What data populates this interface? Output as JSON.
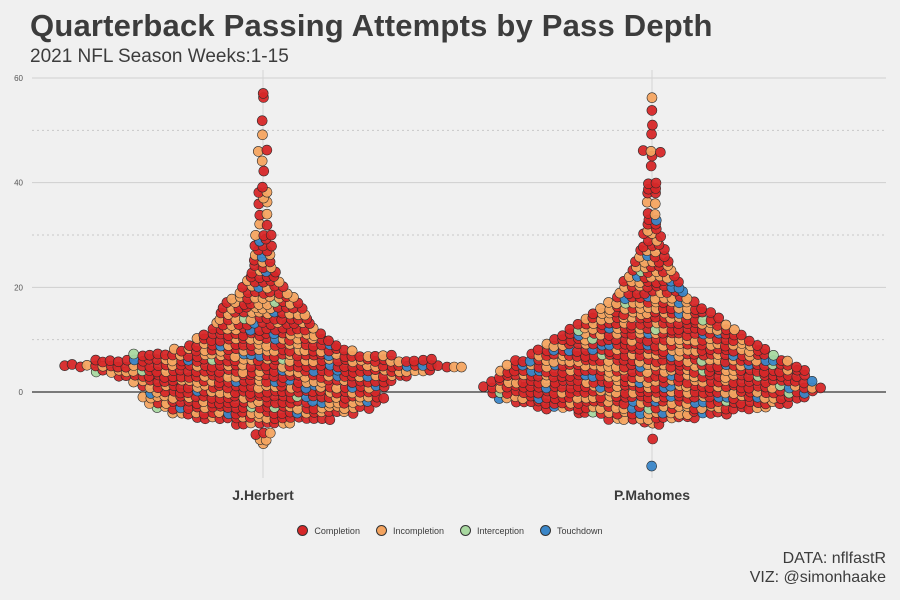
{
  "title": "Quarterback Passing Attempts by Pass Depth",
  "subtitle": "2021 NFL Season Weeks:1-15",
  "caption": {
    "line1": "DATA: nflfastR",
    "line2": "VIZ: @simonhaake"
  },
  "chart_data": {
    "type": "scatter",
    "subtype": "beeswarm",
    "title": "Quarterback Passing Attempts by Pass Depth",
    "subtitle": "2021 NFL Season Weeks:1-15",
    "xlabel": "",
    "ylabel": "",
    "categories": [
      "J.Herbert",
      "P.Mahomes"
    ],
    "ylim": [
      -17,
      60
    ],
    "yticks": [
      0,
      20,
      40,
      60
    ],
    "grid": true,
    "legend_position": "bottom",
    "colors": {
      "Completion": "#d62728",
      "Incompletion": "#f4a460",
      "Interception": "#a8d8a0",
      "Touchdown": "#3a86c8"
    },
    "legend": [
      "Completion",
      "Incompletion",
      "Interception",
      "Touchdown"
    ],
    "series": [
      {
        "name": "J.Herbert",
        "depth_distribution": [
          {
            "d": -10,
            "n": 1
          },
          {
            "d": -9,
            "n": 2
          },
          {
            "d": -8,
            "n": 3
          },
          {
            "d": -6,
            "n": 8
          },
          {
            "d": -5,
            "n": 18
          },
          {
            "d": -4,
            "n": 24
          },
          {
            "d": -3,
            "n": 28
          },
          {
            "d": -2,
            "n": 30
          },
          {
            "d": -1,
            "n": 32
          },
          {
            "d": 0,
            "n": 30
          },
          {
            "d": 1,
            "n": 32
          },
          {
            "d": 2,
            "n": 34
          },
          {
            "d": 3,
            "n": 38
          },
          {
            "d": 4,
            "n": 44
          },
          {
            "d": 5,
            "n": 52
          },
          {
            "d": 6,
            "n": 44
          },
          {
            "d": 7,
            "n": 34
          },
          {
            "d": 8,
            "n": 24
          },
          {
            "d": 9,
            "n": 20
          },
          {
            "d": 10,
            "n": 18
          },
          {
            "d": 11,
            "n": 16
          },
          {
            "d": 12,
            "n": 14
          },
          {
            "d": 13,
            "n": 13
          },
          {
            "d": 14,
            "n": 12
          },
          {
            "d": 15,
            "n": 12
          },
          {
            "d": 16,
            "n": 11
          },
          {
            "d": 17,
            "n": 10
          },
          {
            "d": 18,
            "n": 9
          },
          {
            "d": 19,
            "n": 7
          },
          {
            "d": 20,
            "n": 6
          },
          {
            "d": 21,
            "n": 5
          },
          {
            "d": 22,
            "n": 4
          },
          {
            "d": 23,
            "n": 4
          },
          {
            "d": 24,
            "n": 3
          },
          {
            "d": 25,
            "n": 3
          },
          {
            "d": 26,
            "n": 3
          },
          {
            "d": 27,
            "n": 2
          },
          {
            "d": 28,
            "n": 3
          },
          {
            "d": 29,
            "n": 2
          },
          {
            "d": 30,
            "n": 3
          },
          {
            "d": 32,
            "n": 2
          },
          {
            "d": 34,
            "n": 2
          },
          {
            "d": 36,
            "n": 2
          },
          {
            "d": 37,
            "n": 1
          },
          {
            "d": 38,
            "n": 2
          },
          {
            "d": 39,
            "n": 1
          },
          {
            "d": 42,
            "n": 1
          },
          {
            "d": 44,
            "n": 1
          },
          {
            "d": 46,
            "n": 2
          },
          {
            "d": 49,
            "n": 1
          },
          {
            "d": 52,
            "n": 1
          },
          {
            "d": 56,
            "n": 1
          },
          {
            "d": 57,
            "n": 1
          }
        ]
      },
      {
        "name": "P.Mahomes",
        "depth_distribution": [
          {
            "d": -14,
            "n": 1
          },
          {
            "d": -9,
            "n": 1
          },
          {
            "d": -6,
            "n": 3
          },
          {
            "d": -5,
            "n": 12
          },
          {
            "d": -4,
            "n": 20
          },
          {
            "d": -3,
            "n": 30
          },
          {
            "d": -2,
            "n": 36
          },
          {
            "d": -1,
            "n": 40
          },
          {
            "d": 0,
            "n": 42
          },
          {
            "d": 1,
            "n": 44
          },
          {
            "d": 2,
            "n": 42
          },
          {
            "d": 3,
            "n": 40
          },
          {
            "d": 4,
            "n": 40
          },
          {
            "d": 5,
            "n": 38
          },
          {
            "d": 6,
            "n": 36
          },
          {
            "d": 7,
            "n": 32
          },
          {
            "d": 8,
            "n": 30
          },
          {
            "d": 9,
            "n": 28
          },
          {
            "d": 10,
            "n": 26
          },
          {
            "d": 11,
            "n": 24
          },
          {
            "d": 12,
            "n": 22
          },
          {
            "d": 13,
            "n": 20
          },
          {
            "d": 14,
            "n": 18
          },
          {
            "d": 15,
            "n": 16
          },
          {
            "d": 16,
            "n": 14
          },
          {
            "d": 17,
            "n": 12
          },
          {
            "d": 18,
            "n": 10
          },
          {
            "d": 19,
            "n": 9
          },
          {
            "d": 20,
            "n": 8
          },
          {
            "d": 21,
            "n": 8
          },
          {
            "d": 22,
            "n": 7
          },
          {
            "d": 23,
            "n": 6
          },
          {
            "d": 24,
            "n": 5
          },
          {
            "d": 25,
            "n": 5
          },
          {
            "d": 26,
            "n": 4
          },
          {
            "d": 27,
            "n": 4
          },
          {
            "d": 28,
            "n": 3
          },
          {
            "d": 29,
            "n": 2
          },
          {
            "d": 30,
            "n": 3
          },
          {
            "d": 31,
            "n": 2
          },
          {
            "d": 32,
            "n": 2
          },
          {
            "d": 33,
            "n": 2
          },
          {
            "d": 34,
            "n": 2
          },
          {
            "d": 36,
            "n": 2
          },
          {
            "d": 38,
            "n": 2
          },
          {
            "d": 39,
            "n": 2
          },
          {
            "d": 40,
            "n": 2
          },
          {
            "d": 43,
            "n": 1
          },
          {
            "d": 45,
            "n": 1
          },
          {
            "d": 46,
            "n": 3
          },
          {
            "d": 49,
            "n": 1
          },
          {
            "d": 51,
            "n": 1
          },
          {
            "d": 54,
            "n": 1
          },
          {
            "d": 56,
            "n": 1
          }
        ]
      }
    ],
    "outcome_share": {
      "Completion": 0.62,
      "Incompletion": 0.3,
      "Interception": 0.02,
      "Touchdown": 0.06
    }
  }
}
